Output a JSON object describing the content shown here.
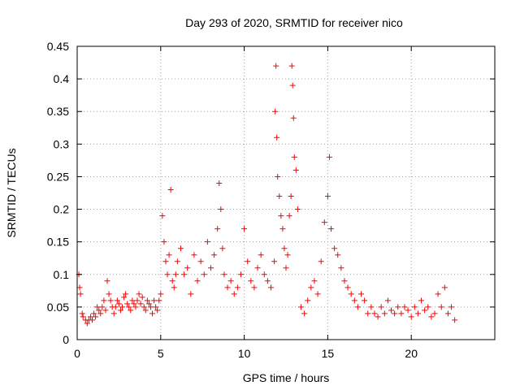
{
  "chart_data": {
    "type": "scatter",
    "title": "Day 293 of 2020, SRMTID for receiver nico",
    "xlabel": "GPS time / hours",
    "ylabel": "SRMTID / TECUs",
    "xlim": [
      0,
      25
    ],
    "ylim": [
      0,
      0.45
    ],
    "xticks": [
      0,
      5,
      10,
      15,
      20
    ],
    "xtick_labels": [
      "0",
      "5",
      "10",
      "15",
      "20"
    ],
    "yticks": [
      0,
      0.05,
      0.1,
      0.15,
      0.2,
      0.25,
      0.3,
      0.35,
      0.4,
      0.45
    ],
    "ytick_labels": [
      "0",
      "0.05",
      "0.1",
      "0.15",
      "0.2",
      "0.25",
      "0.3",
      "0.35",
      "0.4",
      "0.45"
    ],
    "grid": true,
    "marker": "+",
    "color": "#ff0000",
    "series": [
      {
        "name": "SRMTID",
        "x": [
          0.1,
          0.15,
          0.2,
          0.3,
          0.35,
          0.5,
          0.6,
          0.7,
          0.8,
          0.9,
          1.0,
          1.1,
          1.2,
          1.3,
          1.4,
          1.5,
          1.6,
          1.7,
          1.8,
          1.9,
          2.0,
          2.1,
          2.2,
          2.3,
          2.4,
          2.5,
          2.6,
          2.7,
          2.8,
          2.9,
          3.0,
          3.1,
          3.2,
          3.3,
          3.4,
          3.5,
          3.6,
          3.7,
          3.8,
          3.9,
          4.0,
          4.1,
          4.2,
          4.3,
          4.4,
          4.5,
          4.6,
          4.7,
          4.8,
          4.9,
          5.0,
          5.1,
          5.2,
          5.3,
          5.4,
          5.5,
          5.6,
          5.7,
          5.8,
          5.9,
          6.0,
          6.2,
          6.4,
          6.6,
          6.8,
          7.0,
          7.2,
          7.4,
          7.6,
          7.8,
          8.0,
          8.2,
          8.4,
          8.5,
          8.6,
          8.7,
          8.8,
          9.0,
          9.2,
          9.4,
          9.6,
          9.8,
          10.0,
          10.2,
          10.4,
          10.6,
          10.8,
          11.0,
          11.2,
          11.4,
          11.6,
          11.8,
          11.85,
          11.9,
          11.95,
          12.0,
          12.1,
          12.2,
          12.3,
          12.4,
          12.5,
          12.6,
          12.7,
          12.8,
          12.85,
          12.9,
          12.95,
          13.0,
          13.1,
          13.2,
          13.4,
          13.6,
          13.8,
          14.0,
          14.2,
          14.4,
          14.6,
          14.8,
          15.0,
          15.1,
          15.2,
          15.4,
          15.6,
          15.8,
          16.0,
          16.2,
          16.4,
          16.6,
          16.8,
          17.0,
          17.2,
          17.4,
          17.6,
          17.8,
          18.0,
          18.2,
          18.4,
          18.6,
          18.8,
          19.0,
          19.2,
          19.4,
          19.6,
          19.8,
          20.0,
          20.2,
          20.4,
          20.6,
          20.8,
          21.0,
          21.2,
          21.4,
          21.6,
          21.8,
          22.0,
          22.2,
          22.4,
          22.6
        ],
        "y": [
          0.1,
          0.08,
          0.07,
          0.04,
          0.035,
          0.03,
          0.025,
          0.03,
          0.035,
          0.03,
          0.04,
          0.035,
          0.05,
          0.045,
          0.04,
          0.05,
          0.06,
          0.045,
          0.09,
          0.07,
          0.06,
          0.05,
          0.04,
          0.05,
          0.06,
          0.055,
          0.045,
          0.05,
          0.065,
          0.07,
          0.055,
          0.05,
          0.045,
          0.06,
          0.055,
          0.05,
          0.06,
          0.07,
          0.055,
          0.065,
          0.05,
          0.045,
          0.06,
          0.055,
          0.05,
          0.04,
          0.06,
          0.05,
          0.045,
          0.06,
          0.07,
          0.19,
          0.15,
          0.12,
          0.1,
          0.13,
          0.23,
          0.09,
          0.08,
          0.1,
          0.12,
          0.14,
          0.1,
          0.11,
          0.07,
          0.13,
          0.09,
          0.12,
          0.1,
          0.15,
          0.11,
          0.13,
          0.17,
          0.24,
          0.2,
          0.14,
          0.1,
          0.08,
          0.09,
          0.07,
          0.08,
          0.1,
          0.17,
          0.12,
          0.09,
          0.08,
          0.11,
          0.13,
          0.1,
          0.09,
          0.08,
          0.12,
          0.35,
          0.42,
          0.31,
          0.25,
          0.22,
          0.19,
          0.17,
          0.14,
          0.11,
          0.13,
          0.19,
          0.22,
          0.42,
          0.39,
          0.34,
          0.28,
          0.26,
          0.2,
          0.05,
          0.04,
          0.06,
          0.08,
          0.09,
          0.07,
          0.12,
          0.18,
          0.22,
          0.28,
          0.17,
          0.14,
          0.13,
          0.11,
          0.09,
          0.08,
          0.07,
          0.06,
          0.05,
          0.07,
          0.06,
          0.04,
          0.05,
          0.04,
          0.035,
          0.05,
          0.04,
          0.06,
          0.045,
          0.04,
          0.05,
          0.04,
          0.05,
          0.045,
          0.035,
          0.05,
          0.04,
          0.06,
          0.045,
          0.05,
          0.035,
          0.04,
          0.07,
          0.05,
          0.08,
          0.04,
          0.05,
          0.03
        ]
      }
    ]
  }
}
